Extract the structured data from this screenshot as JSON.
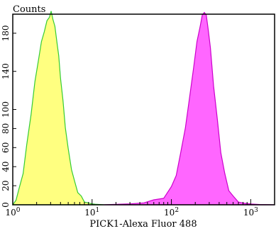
{
  "chart_data": {
    "type": "area",
    "title": "",
    "ylabel": "Counts",
    "xlabel": "PICK1-Alexa Fluor 488",
    "x_scale": "log",
    "xlim": [
      1,
      2000
    ],
    "ylim": [
      0,
      200
    ],
    "x_ticks": [
      {
        "value": 1,
        "base": "10",
        "exp": "0"
      },
      {
        "value": 10,
        "base": "10",
        "exp": "1"
      },
      {
        "value": 100,
        "base": "10",
        "exp": "2"
      },
      {
        "value": 1000,
        "base": "10",
        "exp": "3"
      }
    ],
    "y_ticks": [
      {
        "value": 0,
        "label": "0"
      },
      {
        "value": 20,
        "label": "20"
      },
      {
        "value": 40,
        "label": "40"
      },
      {
        "value": 60,
        "label": "60"
      },
      {
        "value": 80,
        "label": "80"
      },
      {
        "value": 100,
        "label": "100"
      },
      {
        "value": 140,
        "label": "140"
      },
      {
        "value": 180,
        "label": "180"
      }
    ],
    "grid": false,
    "legend": "none",
    "series": [
      {
        "fill": "#ffff80",
        "stroke": "#33cc33",
        "x": [
          1.0,
          1.1,
          1.2,
          1.35,
          1.5,
          1.7,
          1.9,
          2.1,
          2.3,
          2.5,
          2.7,
          2.9,
          3.05,
          3.2,
          3.4,
          3.6,
          3.8,
          4.0,
          4.3,
          4.6,
          5.0,
          5.5,
          6.0,
          6.6,
          7.3,
          8.0,
          9.0,
          10.0,
          11.0,
          12.5,
          14.0
        ],
        "y": [
          0,
          6,
          16,
          34,
          62,
          96,
          128,
          152,
          170,
          183,
          192,
          198,
          202,
          196,
          186,
          172,
          155,
          134,
          108,
          82,
          58,
          38,
          24,
          14,
          8,
          4,
          2,
          1,
          0.6,
          0.3,
          0
        ]
      },
      {
        "fill": "#ff66ff",
        "stroke": "#cc00cc",
        "x": [
          14.0,
          20.0,
          30.0,
          45.0,
          60.0,
          80.0,
          100.0,
          115.0,
          130.0,
          150.0,
          170.0,
          190.0,
          210.0,
          230.0,
          245.0,
          260.0,
          275.0,
          290.0,
          310.0,
          340.0,
          380.0,
          420.0,
          470.0,
          530.0,
          600.0,
          700.0,
          850.0,
          1000.0,
          1300.0,
          2000.0
        ],
        "y": [
          0,
          0.5,
          1,
          2,
          4,
          8,
          18,
          32,
          52,
          82,
          112,
          144,
          170,
          188,
          198,
          203,
          198,
          186,
          164,
          126,
          88,
          56,
          32,
          16,
          8,
          4,
          1.5,
          0.8,
          0.3,
          0
        ]
      }
    ]
  }
}
